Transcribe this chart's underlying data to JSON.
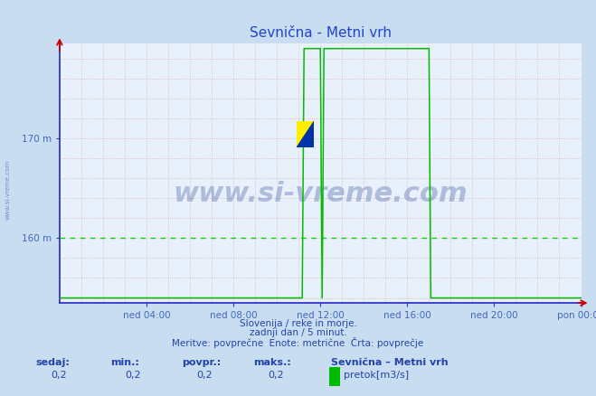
{
  "title": "Sevnična - Metni vrh",
  "bg_color": "#c8ddf0",
  "plot_bg_color": "#e8f0fb",
  "line_color": "#00bb00",
  "axis_color": "#3333cc",
  "title_color": "#2244cc",
  "text_color": "#2244aa",
  "label_color": "#4466bb",
  "y_170": 170,
  "y_160": 160,
  "ylim": [
    153.5,
    179.5
  ],
  "xlim_start": 0,
  "xlim_end": 288,
  "xtick_positions": [
    48,
    96,
    144,
    192,
    240,
    288
  ],
  "xtick_labels": [
    "ned 04:00",
    "ned 08:00",
    "ned 12:00",
    "ned 16:00",
    "ned 20:00",
    "pon 00:00"
  ],
  "watermark_text": "www.si-vreme.com",
  "watermark_color": "#1a3a8a",
  "sub_text1": "Slovenija / reke in morje.",
  "sub_text2": "zadnji dan / 5 minut.",
  "sub_text3": "Meritve: povprečne  Enote: metrične  Črta: povprečje",
  "stats_label1": "sedaj:",
  "stats_val1": "0,2",
  "stats_label2": "min.:",
  "stats_val2": "0,2",
  "stats_label3": "povpr.:",
  "stats_val3": "0,2",
  "stats_label4": "maks.:",
  "stats_val4": "0,2",
  "legend_station": "Sevnična – Metni vrh",
  "legend_label": "pretok[m3/s]",
  "legend_color": "#00bb00",
  "base_value": 154.0,
  "spike1_start": 135,
  "spike1_end": 144,
  "spike2_start": 146,
  "spike2_end": 204,
  "spike_top": 179.0,
  "green_hline": 160
}
